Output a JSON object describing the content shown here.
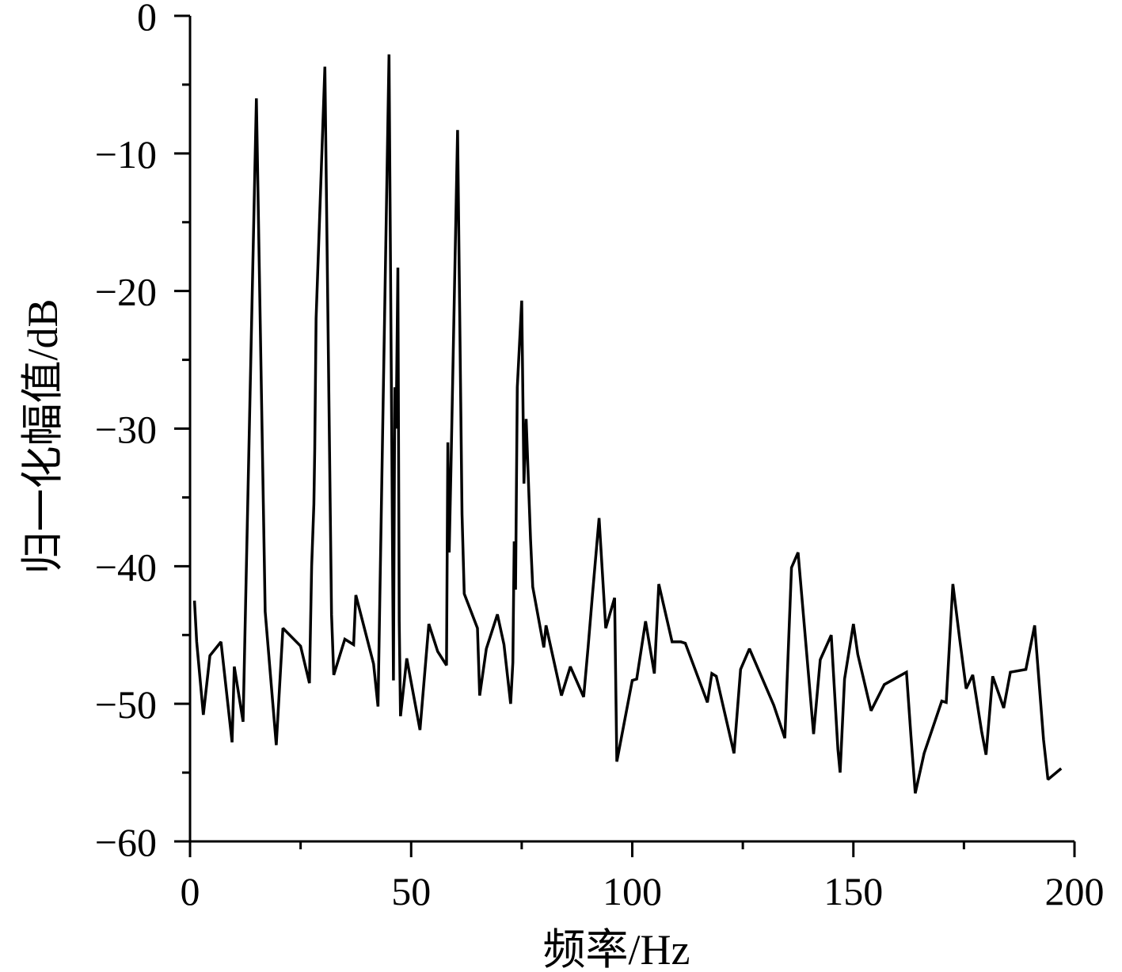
{
  "chart_data": {
    "type": "line",
    "title": "",
    "xlabel": "频率/Hz",
    "ylabel": "归一化幅值/dB",
    "xlim": [
      0,
      200
    ],
    "ylim": [
      -60,
      0
    ],
    "x_ticks": [
      0,
      50,
      100,
      150,
      200
    ],
    "x_tick_labels": [
      "0",
      "50",
      "100",
      "150",
      "200"
    ],
    "y_ticks": [
      0,
      -10,
      -20,
      -30,
      -40,
      -50,
      -60
    ],
    "y_tick_labels": [
      "0",
      "−10",
      "−20",
      "−30",
      "−40",
      "−50",
      "−60"
    ],
    "grid": false,
    "line_color": "#000000",
    "series": [
      {
        "x": [
          1,
          1.5,
          3,
          4.5,
          7,
          9.5,
          10,
          12,
          15,
          17,
          19.5,
          21,
          25,
          27,
          27.5,
          28,
          28.2,
          28.5,
          30.5,
          32,
          32.5,
          35,
          37,
          37.5,
          41.5,
          42.5,
          45,
          46,
          46.3,
          46.6,
          47,
          47.3,
          47.6,
          49,
          52,
          54,
          56,
          58,
          58.3,
          58.6,
          59,
          60.5,
          61.5,
          62,
          65,
          65.5,
          67,
          69.5,
          71,
          72.5,
          73,
          73.3,
          73.6,
          74,
          75,
          75.5,
          76,
          77,
          77.5,
          80,
          80.5,
          84,
          86,
          89,
          90,
          91,
          92.5,
          94,
          96,
          96.5,
          100,
          101,
          103,
          105,
          106,
          109,
          111,
          112,
          117,
          118,
          119,
          123,
          124.5,
          126.5,
          132,
          134.5,
          136,
          137.5,
          141,
          142.5,
          145,
          146.5,
          147,
          148,
          150,
          151,
          154,
          157,
          162,
          163,
          164,
          166,
          170,
          171,
          172.5,
          174,
          175.5,
          177,
          179,
          180,
          181.5,
          184,
          185.5,
          189,
          191,
          193,
          194,
          197
        ],
        "y": [
          -42.5,
          -45.5,
          -50.8,
          -46.5,
          -45.5,
          -52.8,
          -47.3,
          -51.3,
          -6,
          -43.3,
          -53,
          -44.5,
          -45.8,
          -48.5,
          -40,
          -35.5,
          -31.5,
          -22,
          -3.7,
          -43.5,
          -47.9,
          -45.3,
          -45.7,
          -42.1,
          -47.1,
          -50.2,
          -2.8,
          -48.3,
          -27,
          -30,
          -18.3,
          -44,
          -50.9,
          -46.7,
          -51.9,
          -44.2,
          -46.2,
          -47.2,
          -31,
          -39,
          -33,
          -8.3,
          -36.2,
          -42,
          -44.5,
          -49.4,
          -46,
          -43.5,
          -45.7,
          -50,
          -47,
          -38.2,
          -41.7,
          -27,
          -20.7,
          -34,
          -29.3,
          -38,
          -41.5,
          -45.9,
          -44.3,
          -49.4,
          -47.3,
          -49.5,
          -45.9,
          -42.1,
          -36.5,
          -44.5,
          -42.3,
          -54.2,
          -48.3,
          -48.2,
          -44,
          -47.8,
          -41.3,
          -45.5,
          -45.5,
          -45.6,
          -49.9,
          -47.8,
          -48,
          -53.6,
          -47.5,
          -46,
          -50.1,
          -52.5,
          -40.1,
          -39,
          -52.2,
          -46.8,
          -45,
          -53.3,
          -55,
          -48.2,
          -44.2,
          -46.4,
          -50.5,
          -48.6,
          -47.7,
          -52.3,
          -56.5,
          -53.6,
          -49.8,
          -49.9,
          -41.3,
          -45.2,
          -48.9,
          -47.9,
          -52,
          -53.7,
          -48,
          -50.3,
          -47.7,
          -47.5,
          -44.3,
          -52.6,
          -55.5,
          -54.7
        ]
      }
    ]
  }
}
